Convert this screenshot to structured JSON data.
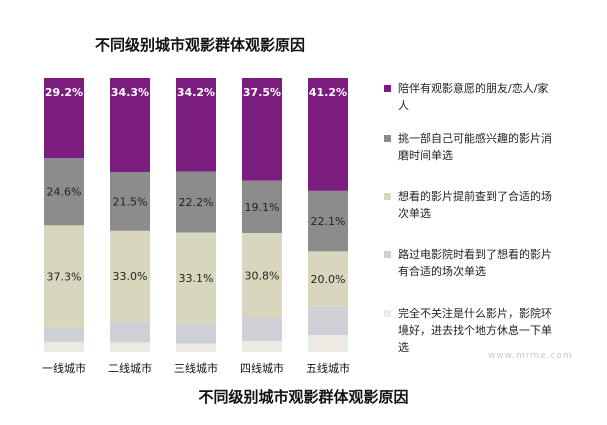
{
  "chart_data": {
    "type": "bar",
    "stacked": true,
    "normalized": true,
    "title": "不同级别城市观影群体观影原因",
    "categories": [
      "一线城市",
      "二线城市",
      "三线城市",
      "四线城市",
      "五线城市"
    ],
    "series": [
      {
        "name": "陪伴有观影意愿的朋友/恋人/家人",
        "values": [
          29.2,
          34.3,
          34.2,
          37.5,
          41.2
        ],
        "labels": [
          "29.2%",
          "34.3%",
          "34.2%",
          "37.5%",
          "41.2%"
        ],
        "color": "#7a1d7e"
      },
      {
        "name": "挑一部自己可能感兴趣的影片消磨时间单选",
        "values": [
          24.6,
          21.5,
          22.2,
          19.1,
          22.1
        ],
        "labels": [
          "24.6%",
          "21.5%",
          "22.2%",
          "19.1%",
          "22.1%"
        ],
        "color": "#8c8c8c"
      },
      {
        "name": "想看的影片提前查到了合适的场次单选",
        "values": [
          37.3,
          33.0,
          33.1,
          30.8,
          20.0
        ],
        "labels": [
          "37.3%",
          "33.0%",
          "33.1%",
          "30.8%",
          "20.0%"
        ],
        "color": "#d8d7bd"
      },
      {
        "name": "路过电影院时看到了想看的影片有合适的场次单选",
        "values": [
          5.3,
          7.7,
          7.5,
          8.6,
          10.5
        ],
        "color": "#cfd0d6"
      },
      {
        "name": "完全不关注是什么影片，影院环境好，进去找个地方休息一下单选",
        "values": [
          3.6,
          3.5,
          3.0,
          4.0,
          6.2
        ],
        "color": "#eceae2"
      }
    ],
    "legend": {
      "position": "right",
      "lines": [
        [
          "陪伴有观影意愿的朋友/恋人/家",
          "人"
        ],
        [
          "挑一部自己可能感兴趣的影片消",
          "磨时间单选"
        ],
        [
          "想看的影片提前查到了合适的场",
          "次单选"
        ],
        [
          "路过电影院时看到了想看的影片",
          "有合适的场次单选"
        ],
        [
          "完全不关注是什么影片，影院环",
          "境好，进去找个地方休息一下单",
          "选"
        ]
      ]
    },
    "ylim": [
      0,
      100
    ],
    "grid": false
  },
  "caption": "不同级别城市观影群体观影原因",
  "watermark": "www.mrme.com"
}
